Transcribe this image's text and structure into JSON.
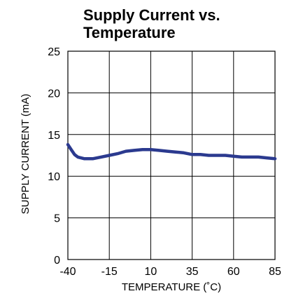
{
  "chart_data": {
    "type": "line",
    "title_lines": [
      "Supply Current vs.",
      "Temperature"
    ],
    "xlabel": "TEMPERATURE (˚C)",
    "ylabel": "SUPPLY CURRENT (mA)",
    "xlim": [
      -40,
      85
    ],
    "ylim": [
      0,
      25
    ],
    "x_ticks": [
      "-40",
      "-15",
      "10",
      "35",
      "60",
      "85"
    ],
    "y_ticks": [
      "0",
      "5",
      "10",
      "15",
      "20",
      "25"
    ],
    "grid": true,
    "series": [
      {
        "color": "#2b3a8f",
        "x": [
          -40,
          -38,
          -36,
          -34,
          -30,
          -25,
          -20,
          -15,
          -10,
          -5,
          0,
          5,
          10,
          15,
          20,
          25,
          30,
          35,
          40,
          45,
          50,
          55,
          60,
          65,
          70,
          75,
          80,
          85
        ],
        "y": [
          13.8,
          13.2,
          12.6,
          12.3,
          12.1,
          12.1,
          12.3,
          12.5,
          12.7,
          13.0,
          13.1,
          13.2,
          13.2,
          13.1,
          13.0,
          12.9,
          12.8,
          12.6,
          12.6,
          12.5,
          12.5,
          12.5,
          12.4,
          12.3,
          12.3,
          12.3,
          12.2,
          12.1
        ]
      }
    ]
  }
}
